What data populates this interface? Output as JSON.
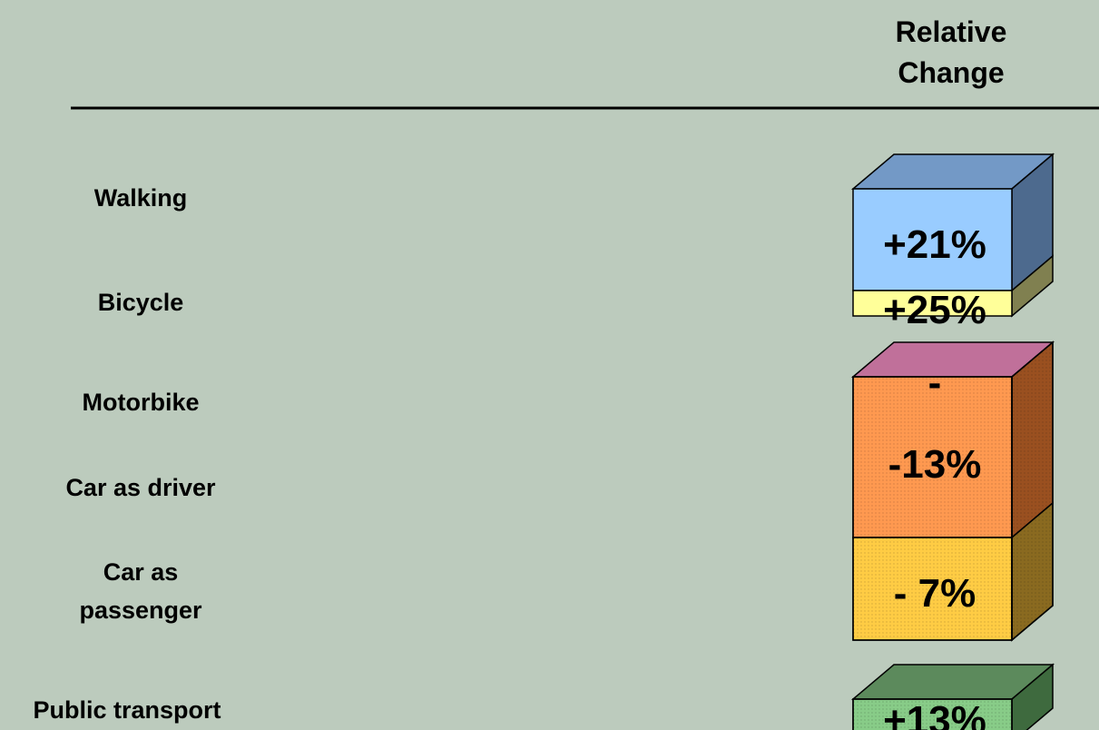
{
  "header": {
    "lines": [
      "Relative",
      "Change"
    ]
  },
  "rows": [
    {
      "label": "Walking",
      "change": "+21%"
    },
    {
      "label": "Bicycle",
      "change": "+25%"
    },
    {
      "label": "Motorbike",
      "change": "-"
    },
    {
      "label": "Car as driver",
      "change": "-13%"
    },
    {
      "label": "Car as passenger",
      "change": "- 7%"
    },
    {
      "label": "Public transport",
      "change": "+13%"
    }
  ]
}
